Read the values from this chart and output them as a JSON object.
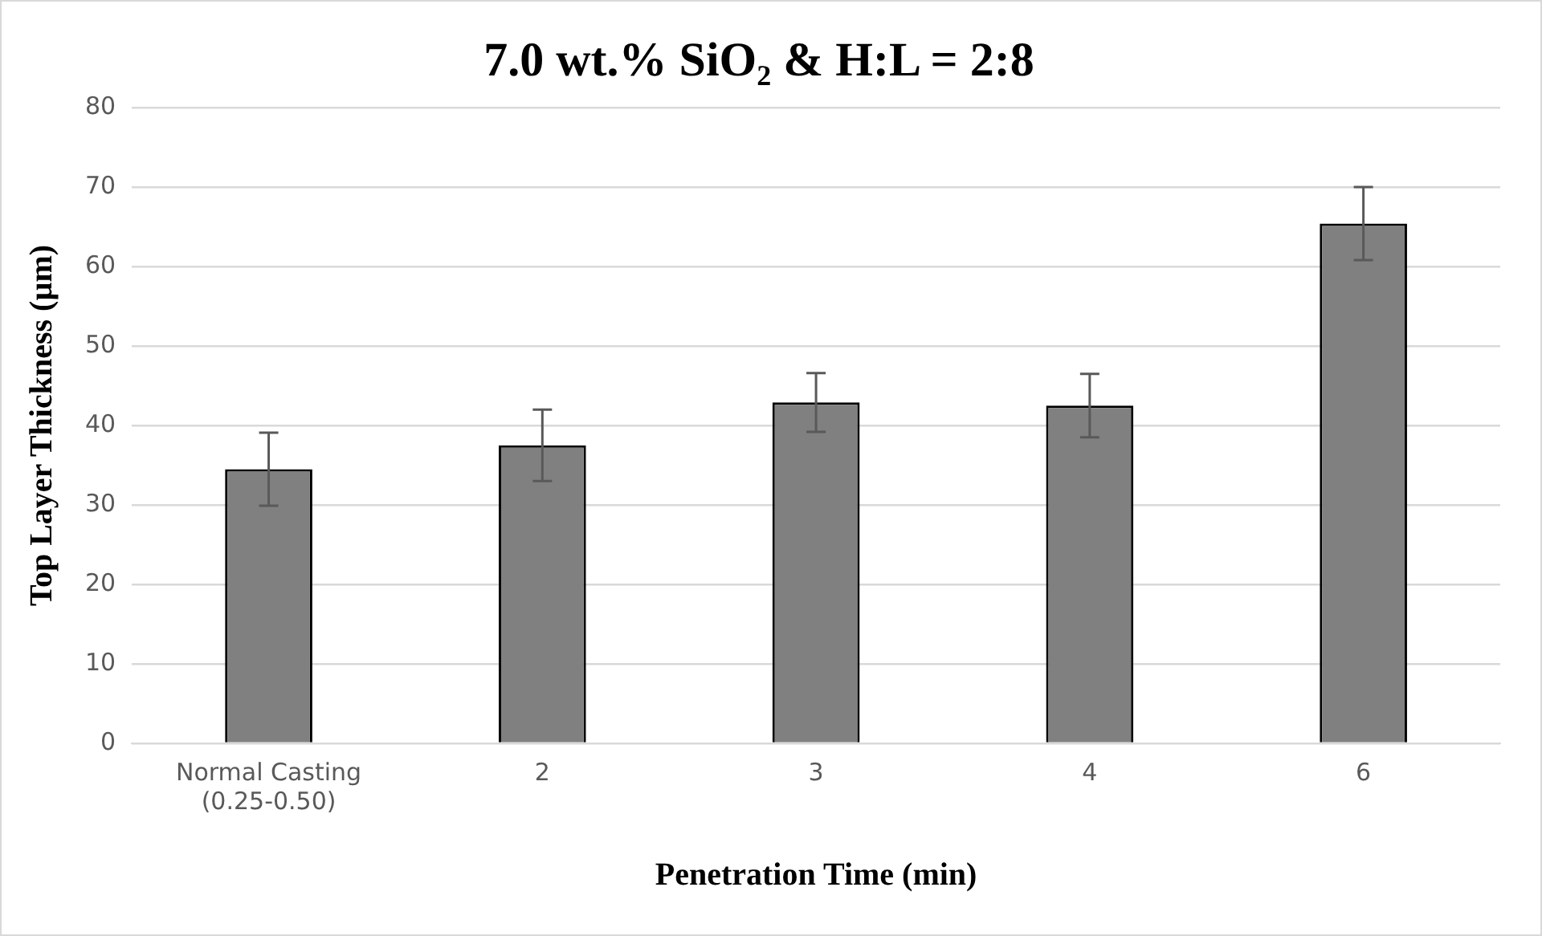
{
  "chart_data": {
    "type": "bar",
    "title": "7.0 wt.% SiO₂ & H:L = 2:8",
    "xlabel": "Penetration Time (min)",
    "ylabel": "Top Layer Thickness (µm)",
    "categories": [
      "Normal Casting (0.25-0.50)",
      "2",
      "3",
      "4",
      "6"
    ],
    "values": [
      34.5,
      37.5,
      42.9,
      42.5,
      65.4
    ],
    "errors": [
      4.6,
      4.5,
      3.7,
      4.0,
      4.6
    ],
    "color": "#808080",
    "ylim": [
      0,
      80
    ],
    "yticks": [
      0,
      10,
      20,
      30,
      40,
      50,
      60,
      70,
      80
    ],
    "grid": "y"
  }
}
